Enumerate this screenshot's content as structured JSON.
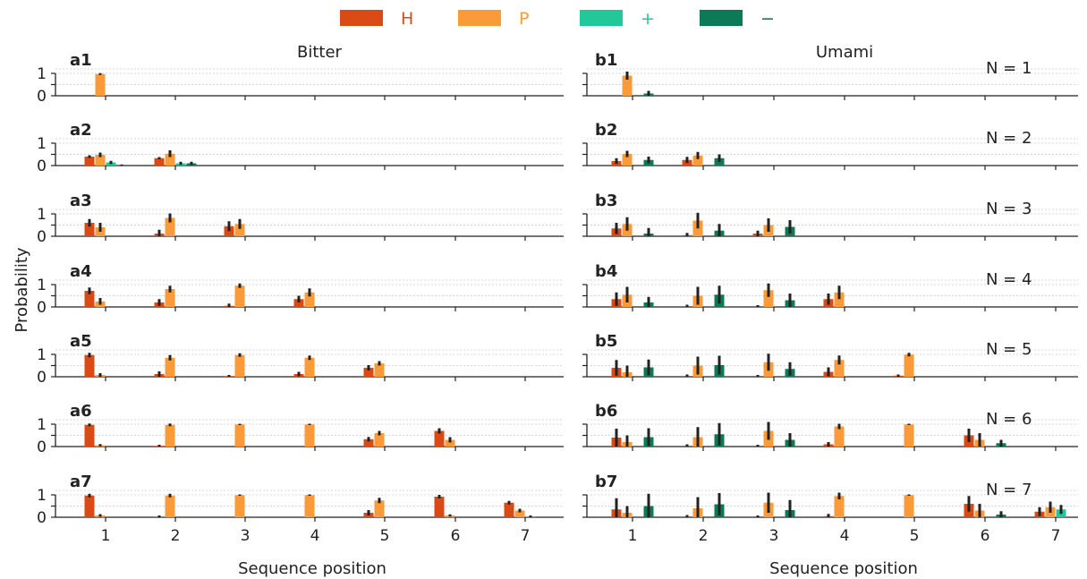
{
  "legend": [
    {
      "key": "H",
      "label": "H",
      "color": "#d94a14"
    },
    {
      "key": "P",
      "label": "P",
      "color": "#fa9a38"
    },
    {
      "key": "plus",
      "label": "+",
      "color": "#22c79a"
    },
    {
      "key": "minus",
      "label": "−",
      "color": "#0d7a57"
    }
  ],
  "ylabel": "Probability",
  "xlabel": "Sequence position",
  "xticks": [
    "1",
    "2",
    "3",
    "4",
    "5",
    "6",
    "7"
  ],
  "yticks": [
    "0",
    "1"
  ],
  "row_labels": [
    "N = 1",
    "N = 2",
    "N = 3",
    "N = 4",
    "N = 5",
    "N = 6",
    "N = 7"
  ],
  "chart_data": [
    {
      "type": "bar",
      "title": "Bitter",
      "xlabel": "Sequence position",
      "ylabel": "Probability",
      "ylim": [
        0,
        1.15
      ],
      "series_order": [
        "H",
        "P",
        "plus",
        "minus"
      ],
      "panels": [
        {
          "label": "a1",
          "n": 1,
          "values": [
            [
              0.0,
              0.97,
              0.0,
              0.0
            ]
          ],
          "errors": [
            [
              0.0,
              0.04,
              0.0,
              0.0
            ]
          ]
        },
        {
          "label": "a2",
          "n": 2,
          "values": [
            [
              0.4,
              0.48,
              0.14,
              0.0
            ],
            [
              0.33,
              0.53,
              0.1,
              0.1
            ]
          ],
          "errors": [
            [
              0.06,
              0.1,
              0.07,
              0.05
            ],
            [
              0.05,
              0.15,
              0.07,
              0.07
            ]
          ]
        },
        {
          "label": "a3",
          "n": 3,
          "values": [
            [
              0.6,
              0.4,
              0.0,
              0.0
            ],
            [
              0.12,
              0.82,
              0.0,
              0.0
            ],
            [
              0.45,
              0.55,
              0.0,
              0.0
            ]
          ],
          "errors": [
            [
              0.17,
              0.2,
              0.0,
              0.0
            ],
            [
              0.17,
              0.2,
              0.0,
              0.0
            ],
            [
              0.22,
              0.22,
              0.0,
              0.0
            ]
          ]
        },
        {
          "label": "a4",
          "n": 4,
          "values": [
            [
              0.72,
              0.25,
              0.0,
              0.0
            ],
            [
              0.2,
              0.8,
              0.0,
              0.0
            ],
            [
              0.05,
              0.95,
              0.0,
              0.0
            ],
            [
              0.35,
              0.65,
              0.0,
              0.0
            ]
          ],
          "errors": [
            [
              0.15,
              0.15,
              0.0,
              0.0
            ],
            [
              0.15,
              0.15,
              0.0,
              0.0
            ],
            [
              0.1,
              0.1,
              0.0,
              0.0
            ],
            [
              0.15,
              0.18,
              0.0,
              0.0
            ]
          ]
        },
        {
          "label": "a5",
          "n": 5,
          "values": [
            [
              0.97,
              0.08,
              0.0,
              0.0
            ],
            [
              0.12,
              0.85,
              0.0,
              0.0
            ],
            [
              0.03,
              0.97,
              0.0,
              0.0
            ],
            [
              0.12,
              0.85,
              0.0,
              0.0
            ],
            [
              0.4,
              0.6,
              0.0,
              0.0
            ]
          ],
          "errors": [
            [
              0.1,
              0.08,
              0.0,
              0.0
            ],
            [
              0.12,
              0.12,
              0.0,
              0.0
            ],
            [
              0.05,
              0.08,
              0.0,
              0.0
            ],
            [
              0.1,
              0.1,
              0.0,
              0.0
            ],
            [
              0.12,
              0.1,
              0.0,
              0.0
            ]
          ]
        },
        {
          "label": "a6",
          "n": 6,
          "values": [
            [
              0.97,
              0.06,
              0.0,
              0.0
            ],
            [
              0.03,
              0.97,
              0.0,
              0.0
            ],
            [
              0.0,
              0.99,
              0.0,
              0.0
            ],
            [
              0.0,
              0.99,
              0.0,
              0.0
            ],
            [
              0.33,
              0.6,
              0.0,
              0.0
            ],
            [
              0.7,
              0.3,
              0.0,
              0.0
            ]
          ],
          "errors": [
            [
              0.06,
              0.05,
              0.0,
              0.0
            ],
            [
              0.05,
              0.06,
              0.0,
              0.0
            ],
            [
              0.0,
              0.03,
              0.0,
              0.0
            ],
            [
              0.0,
              0.03,
              0.0,
              0.0
            ],
            [
              0.1,
              0.1,
              0.0,
              0.0
            ],
            [
              0.12,
              0.12,
              0.0,
              0.0
            ]
          ]
        },
        {
          "label": "a7",
          "n": 7,
          "values": [
            [
              0.97,
              0.08,
              0.0,
              0.0
            ],
            [
              0.03,
              0.97,
              0.0,
              0.0
            ],
            [
              0.0,
              0.99,
              0.0,
              0.0
            ],
            [
              0.0,
              0.99,
              0.0,
              0.0
            ],
            [
              0.2,
              0.75,
              0.0,
              0.0
            ],
            [
              0.92,
              0.08,
              0.0,
              0.0
            ],
            [
              0.65,
              0.3,
              0.04,
              0.0
            ]
          ],
          "errors": [
            [
              0.08,
              0.06,
              0.0,
              0.0
            ],
            [
              0.05,
              0.08,
              0.0,
              0.0
            ],
            [
              0.0,
              0.03,
              0.0,
              0.0
            ],
            [
              0.0,
              0.03,
              0.0,
              0.0
            ],
            [
              0.12,
              0.12,
              0.0,
              0.0
            ],
            [
              0.08,
              0.05,
              0.0,
              0.0
            ],
            [
              0.08,
              0.08,
              0.04,
              0.0
            ]
          ]
        }
      ]
    },
    {
      "type": "bar",
      "title": "Umami",
      "xlabel": "Sequence position",
      "ylabel": "Probability",
      "ylim": [
        0,
        1.15
      ],
      "series_order": [
        "H",
        "P",
        "plus",
        "minus"
      ],
      "panels": [
        {
          "label": "b1",
          "n": 1,
          "values": [
            [
              0.0,
              0.9,
              0.0,
              0.1
            ]
          ],
          "errors": [
            [
              0.0,
              0.18,
              0.0,
              0.12
            ]
          ]
        },
        {
          "label": "b2",
          "n": 2,
          "values": [
            [
              0.2,
              0.52,
              0.0,
              0.25
            ],
            [
              0.25,
              0.45,
              0.0,
              0.33
            ]
          ],
          "errors": [
            [
              0.13,
              0.14,
              0.0,
              0.15
            ],
            [
              0.14,
              0.16,
              0.0,
              0.17
            ]
          ]
        },
        {
          "label": "b3",
          "n": 3,
          "values": [
            [
              0.35,
              0.55,
              0.0,
              0.12
            ],
            [
              0.05,
              0.7,
              0.0,
              0.25
            ],
            [
              0.12,
              0.5,
              0.0,
              0.42
            ]
          ],
          "errors": [
            [
              0.25,
              0.3,
              0.0,
              0.25
            ],
            [
              0.1,
              0.35,
              0.0,
              0.3
            ],
            [
              0.13,
              0.3,
              0.0,
              0.3
            ]
          ]
        },
        {
          "label": "b4",
          "n": 4,
          "values": [
            [
              0.35,
              0.55,
              0.0,
              0.2
            ],
            [
              0.0,
              0.5,
              0.0,
              0.55
            ],
            [
              0.0,
              0.75,
              0.0,
              0.3
            ],
            [
              0.35,
              0.65,
              0.0,
              0.0
            ]
          ],
          "errors": [
            [
              0.3,
              0.35,
              0.0,
              0.25
            ],
            [
              0.1,
              0.4,
              0.0,
              0.4
            ],
            [
              0.08,
              0.3,
              0.0,
              0.3
            ],
            [
              0.25,
              0.3,
              0.0,
              0.0
            ]
          ]
        },
        {
          "label": "b5",
          "n": 5,
          "values": [
            [
              0.4,
              0.2,
              0.0,
              0.42
            ],
            [
              0.0,
              0.5,
              0.0,
              0.52
            ],
            [
              0.0,
              0.65,
              0.0,
              0.35
            ],
            [
              0.22,
              0.75,
              0.0,
              0.0
            ],
            [
              0.05,
              0.99,
              0.0,
              0.0
            ]
          ],
          "errors": [
            [
              0.35,
              0.3,
              0.0,
              0.35
            ],
            [
              0.1,
              0.4,
              0.0,
              0.42
            ],
            [
              0.08,
              0.38,
              0.0,
              0.3
            ],
            [
              0.2,
              0.2,
              0.0,
              0.0
            ],
            [
              0.05,
              0.08,
              0.0,
              0.0
            ]
          ]
        },
        {
          "label": "b6",
          "n": 6,
          "values": [
            [
              0.4,
              0.2,
              0.0,
              0.42
            ],
            [
              0.0,
              0.42,
              0.0,
              0.55
            ],
            [
              0.0,
              0.7,
              0.0,
              0.3
            ],
            [
              0.1,
              0.9,
              0.0,
              0.0
            ],
            [
              0.0,
              0.99,
              0.0,
              0.0
            ],
            [
              0.5,
              0.3,
              0.0,
              0.15
            ]
          ],
          "errors": [
            [
              0.4,
              0.3,
              0.0,
              0.4
            ],
            [
              0.1,
              0.45,
              0.0,
              0.5
            ],
            [
              0.08,
              0.4,
              0.0,
              0.3
            ],
            [
              0.1,
              0.12,
              0.0,
              0.0
            ],
            [
              0.0,
              0.03,
              0.0,
              0.0
            ],
            [
              0.3,
              0.3,
              0.0,
              0.15
            ]
          ]
        },
        {
          "label": "b7",
          "n": 7,
          "values": [
            [
              0.35,
              0.2,
              0.0,
              0.5
            ],
            [
              0.0,
              0.4,
              0.0,
              0.58
            ],
            [
              0.0,
              0.65,
              0.0,
              0.32
            ],
            [
              0.05,
              0.95,
              0.0,
              0.0
            ],
            [
              0.0,
              0.99,
              0.0,
              0.0
            ],
            [
              0.6,
              0.3,
              0.0,
              0.12
            ],
            [
              0.25,
              0.45,
              0.35,
              0.0
            ]
          ],
          "errors": [
            [
              0.5,
              0.3,
              0.0,
              0.55
            ],
            [
              0.1,
              0.5,
              0.0,
              0.5
            ],
            [
              0.08,
              0.45,
              0.0,
              0.45
            ],
            [
              0.1,
              0.15,
              0.0,
              0.0
            ],
            [
              0.0,
              0.03,
              0.0,
              0.0
            ],
            [
              0.35,
              0.3,
              0.0,
              0.15
            ],
            [
              0.2,
              0.25,
              0.2,
              0.0
            ]
          ]
        }
      ]
    }
  ]
}
